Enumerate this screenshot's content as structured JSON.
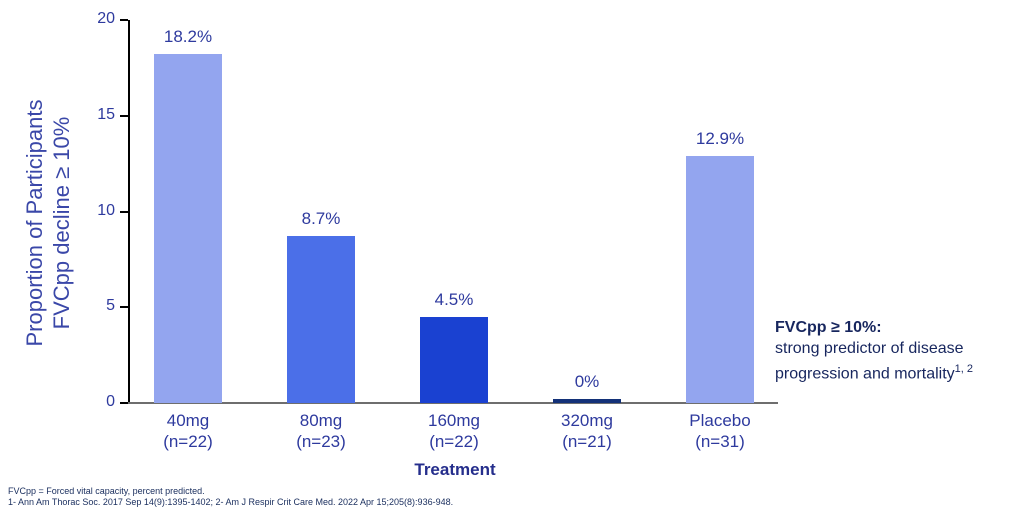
{
  "chart_data": {
    "type": "bar",
    "title": "",
    "categories": [
      {
        "line1": "40mg",
        "line2": "(n=22)"
      },
      {
        "line1": "80mg",
        "line2": "(n=23)"
      },
      {
        "line1": "160mg",
        "line2": "(n=22)"
      },
      {
        "line1": "320mg",
        "line2": "(n=21)"
      },
      {
        "line1": "Placebo",
        "line2": "(n=31)"
      }
    ],
    "values": [
      18.2,
      8.7,
      4.5,
      0,
      12.9
    ],
    "value_labels": [
      "18.2%",
      "8.7%",
      "4.5%",
      "0%",
      "12.9%"
    ],
    "bar_colors": [
      "#93a5ef",
      "#4b6fe8",
      "#1a41d1",
      "#133178",
      "#93a5ef"
    ],
    "xlabel": "Treatment",
    "ylabel_line1": "Proportion of Participants",
    "ylabel_line2": "FVCpp decline ≥ 10%",
    "ylim": [
      0,
      20
    ],
    "yticks": [
      0,
      5,
      10,
      15,
      20
    ],
    "grid": false,
    "legend": "none"
  },
  "annotation": {
    "heading": "FVCpp ≥ 10%:",
    "line1": "strong predictor of disease",
    "line2": "progression and mortality",
    "superscript": "1, 2"
  },
  "footnotes": [
    "FVCpp = Forced vital capacity, percent predicted.",
    "1- Ann Am Thorac Soc. 2017 Sep 14(9):1395-1402; 2- Am J Respir Crit Care Med. 2022 Apr 15;205(8):936-948."
  ],
  "colors": {
    "axis_text": "#2e3a9e",
    "ylabel_text": "#3a47a8",
    "dark_navy_text": "#17265e",
    "x_axis_line": "#6e6e6e",
    "y_axis_line": "#000000",
    "background": "#ffffff"
  }
}
